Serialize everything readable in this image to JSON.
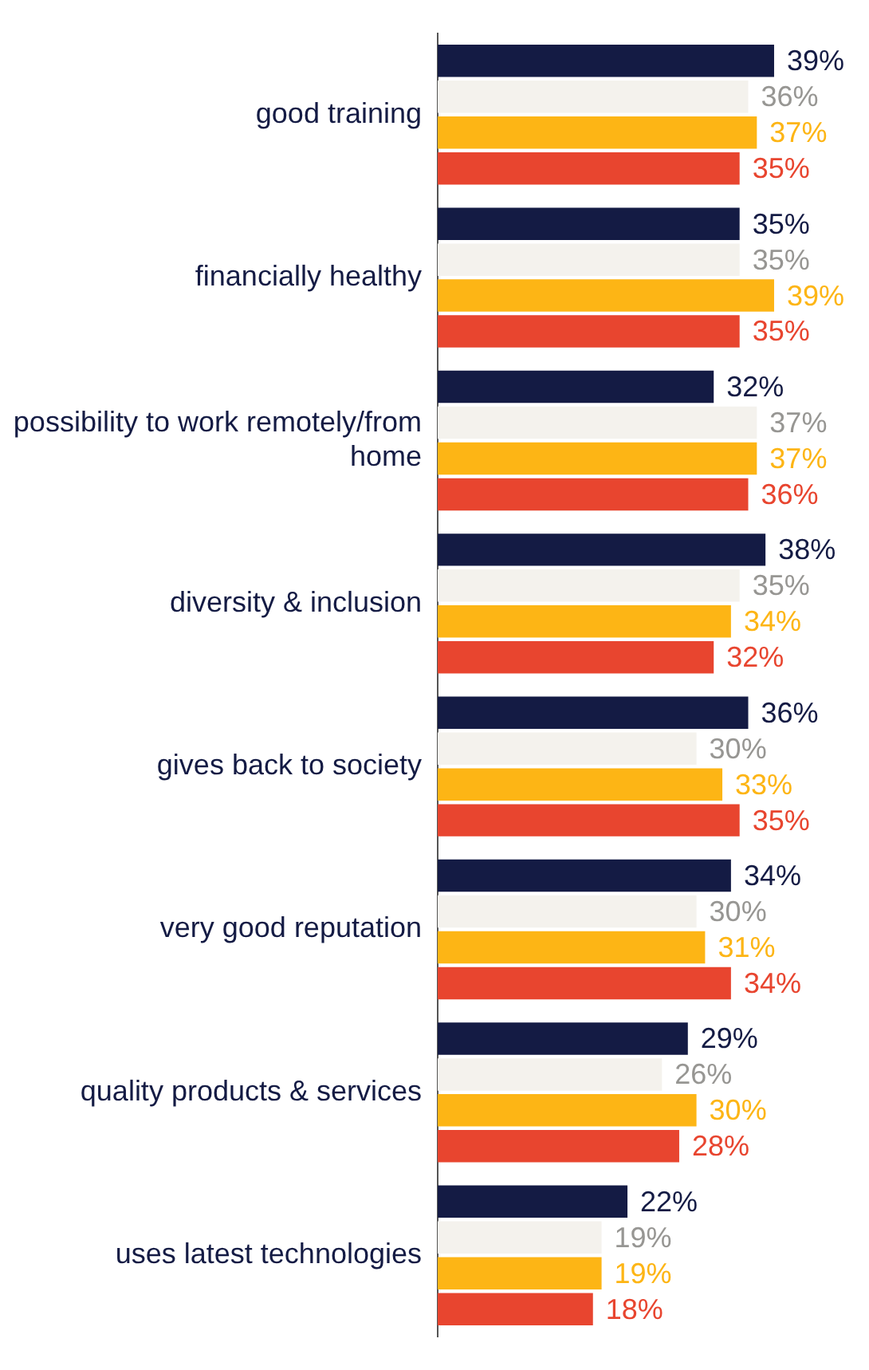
{
  "chart_data": {
    "type": "bar",
    "orientation": "horizontal",
    "categories": [
      "good training",
      "financially healthy",
      "possibility to work remotely/from home",
      "diversity & inclusion",
      "gives back to society",
      "very good reputation",
      "quality products & services",
      "uses latest technologies"
    ],
    "series": [
      {
        "color": "#141b44",
        "values": [
          39,
          35,
          32,
          38,
          36,
          34,
          29,
          22
        ],
        "value_labels": [
          "39%",
          "35%",
          "32%",
          "38%",
          "36%",
          "34%",
          "29%",
          "22%"
        ]
      },
      {
        "color": "#f4f2ed",
        "values": [
          36,
          35,
          37,
          35,
          30,
          30,
          26,
          19
        ],
        "value_labels": [
          "36%",
          "35%",
          "37%",
          "35%",
          "30%",
          "30%",
          "26%",
          "19%"
        ]
      },
      {
        "color": "#fdb515",
        "values": [
          37,
          39,
          37,
          34,
          33,
          31,
          30,
          19
        ],
        "value_labels": [
          "37%",
          "39%",
          "37%",
          "34%",
          "33%",
          "31%",
          "30%",
          "19%"
        ]
      },
      {
        "color": "#e8452f",
        "values": [
          35,
          35,
          36,
          32,
          35,
          34,
          28,
          18
        ],
        "value_labels": [
          "35%",
          "35%",
          "36%",
          "32%",
          "35%",
          "34%",
          "28%",
          "18%"
        ]
      }
    ],
    "legend": false,
    "tick_labels": "y"
  }
}
